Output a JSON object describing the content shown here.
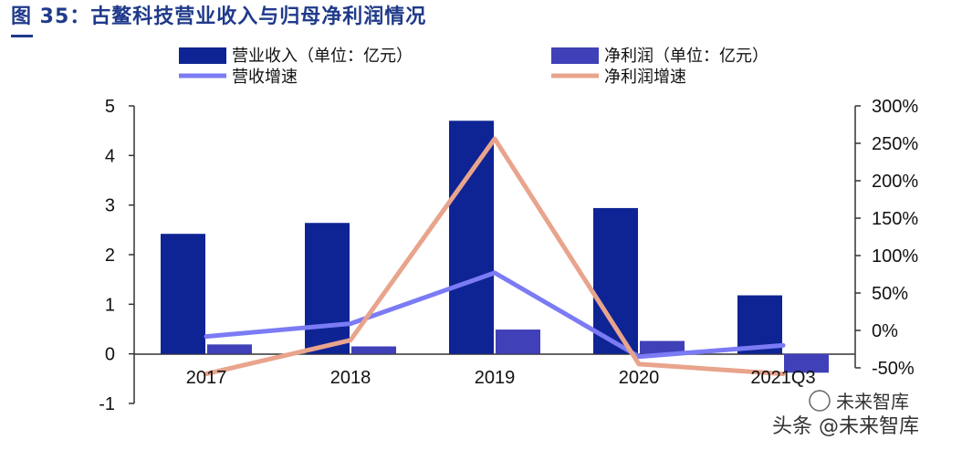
{
  "figure": {
    "title": "图 35：古鳌科技营业收入与归母净利润情况"
  },
  "watermark": {
    "text1": "未来智库",
    "text2": "头条 @未来智库"
  },
  "chart_data": {
    "type": "bar",
    "categories": [
      "2017",
      "2018",
      "2019",
      "2020",
      "2021Q3"
    ],
    "series": [
      {
        "name": "营业收入（单位：亿元）",
        "kind": "bar",
        "axis": "left",
        "color": "#0f2494",
        "values": [
          2.42,
          2.64,
          4.7,
          2.94,
          1.18
        ]
      },
      {
        "name": "净利润（单位：亿元）",
        "kind": "bar",
        "axis": "left",
        "color": "#4040b8",
        "values": [
          0.19,
          0.15,
          0.49,
          0.26,
          -0.38
        ]
      },
      {
        "name": "营收增速",
        "kind": "line",
        "axis": "right",
        "color": "#7b7bf5",
        "values": [
          -8,
          9,
          77,
          -35,
          -20
        ]
      },
      {
        "name": "净利润增速",
        "kind": "line",
        "axis": "right",
        "color": "#e8a48c",
        "values": [
          -58,
          -13,
          256,
          -45,
          -58
        ]
      }
    ],
    "left_axis": {
      "min": -1,
      "max": 5,
      "ticks": [
        "5",
        "4",
        "3",
        "2",
        "1",
        "0",
        "-1"
      ]
    },
    "right_axis": {
      "min": -50,
      "max": 300,
      "ticks": [
        "300%",
        "250%",
        "200%",
        "150%",
        "100%",
        "50%",
        "0%",
        "-50%"
      ]
    },
    "legend_placement": "top",
    "grid": false
  }
}
